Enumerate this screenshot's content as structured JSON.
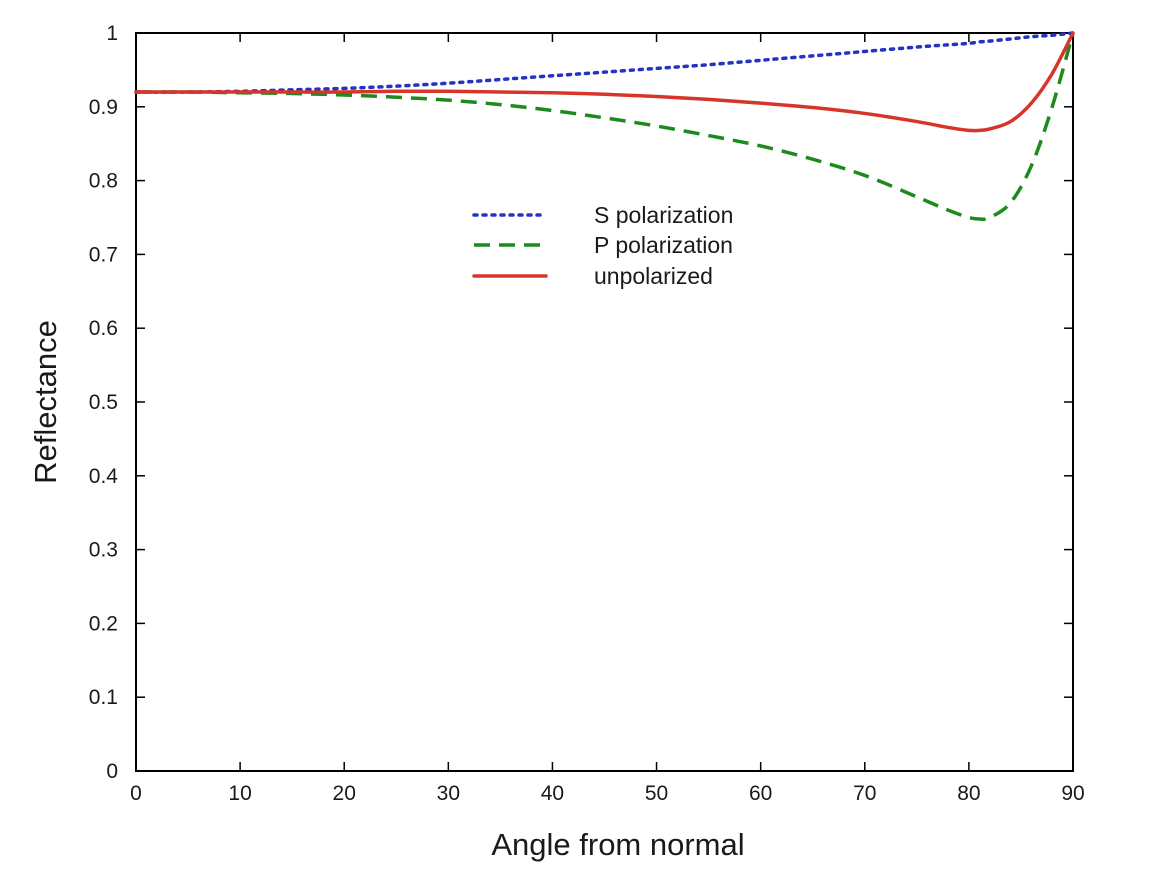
{
  "chart_data": {
    "type": "line",
    "title": "",
    "xlabel": "Angle from normal",
    "ylabel": "Reflectance",
    "xlim": [
      0,
      90
    ],
    "ylim": [
      0,
      1
    ],
    "xticks": [
      0,
      10,
      20,
      30,
      40,
      50,
      60,
      70,
      80,
      90
    ],
    "yticks": [
      0,
      0.1,
      0.2,
      0.3,
      0.4,
      0.5,
      0.6,
      0.7,
      0.8,
      0.9,
      1
    ],
    "xtick_labels": [
      "0",
      "10",
      "20",
      "30",
      "40",
      "50",
      "60",
      "70",
      "80",
      "90"
    ],
    "ytick_labels": [
      "0",
      "0.1",
      "0.2",
      "0.3",
      "0.4",
      "0.5",
      "0.6",
      "0.7",
      "0.8",
      "0.9",
      "1"
    ],
    "grid": false,
    "legend_position": "upper-center",
    "x": [
      0,
      5,
      10,
      15,
      20,
      25,
      30,
      35,
      40,
      45,
      50,
      55,
      60,
      65,
      70,
      75,
      78,
      80,
      81,
      82,
      84,
      86,
      88,
      90
    ],
    "series": [
      {
        "name": "S polarization",
        "style": "dotted",
        "color": "#2433c4",
        "values": [
          0.92,
          0.92,
          0.921,
          0.923,
          0.925,
          0.928,
          0.932,
          0.937,
          0.942,
          0.947,
          0.952,
          0.957,
          0.963,
          0.969,
          0.975,
          0.981,
          0.984,
          0.986,
          0.988,
          0.989,
          0.992,
          0.995,
          0.997,
          1.0
        ]
      },
      {
        "name": "P polarization",
        "style": "dashed",
        "color": "#1d8a1d",
        "values": [
          0.92,
          0.92,
          0.919,
          0.918,
          0.916,
          0.913,
          0.909,
          0.903,
          0.895,
          0.885,
          0.874,
          0.861,
          0.847,
          0.829,
          0.807,
          0.778,
          0.76,
          0.75,
          0.748,
          0.75,
          0.77,
          0.82,
          0.9,
          1.0
        ]
      },
      {
        "name": "unpolarized",
        "style": "solid",
        "color": "#d8352a",
        "values": [
          0.92,
          0.92,
          0.92,
          0.92,
          0.92,
          0.921,
          0.921,
          0.92,
          0.919,
          0.917,
          0.914,
          0.91,
          0.905,
          0.899,
          0.891,
          0.88,
          0.872,
          0.868,
          0.868,
          0.87,
          0.88,
          0.905,
          0.945,
          1.0
        ]
      }
    ]
  }
}
